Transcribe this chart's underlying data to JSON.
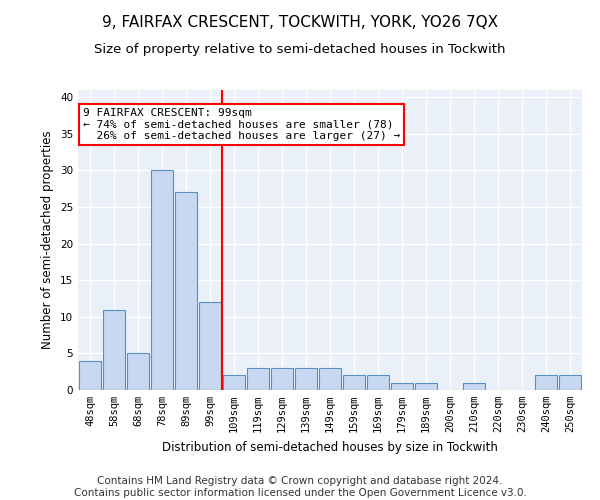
{
  "title": "9, FAIRFAX CRESCENT, TOCKWITH, YORK, YO26 7QX",
  "subtitle": "Size of property relative to semi-detached houses in Tockwith",
  "xlabel": "Distribution of semi-detached houses by size in Tockwith",
  "ylabel": "Number of semi-detached properties",
  "categories": [
    "48sqm",
    "58sqm",
    "68sqm",
    "78sqm",
    "89sqm",
    "99sqm",
    "109sqm",
    "119sqm",
    "129sqm",
    "139sqm",
    "149sqm",
    "159sqm",
    "169sqm",
    "179sqm",
    "189sqm",
    "200sqm",
    "210sqm",
    "220sqm",
    "230sqm",
    "240sqm",
    "250sqm"
  ],
  "values": [
    4,
    11,
    5,
    30,
    27,
    12,
    2,
    3,
    3,
    3,
    3,
    2,
    2,
    1,
    1,
    0,
    1,
    0,
    0,
    2,
    2
  ],
  "bar_color": "#c6d9f0",
  "bar_edgecolor": "#5a8fc2",
  "bar_linewidth": 0.8,
  "vline_x": 5.5,
  "vline_color": "red",
  "annotation_line1": "9 FAIRFAX CRESCENT: 99sqm",
  "annotation_line2": "← 74% of semi-detached houses are smaller (78)",
  "annotation_line3": "  26% of semi-detached houses are larger (27) →",
  "annotation_box_color": "white",
  "annotation_box_edgecolor": "red",
  "ylim": [
    0,
    41
  ],
  "yticks": [
    0,
    5,
    10,
    15,
    20,
    25,
    30,
    35,
    40
  ],
  "background_color": "#eaf0f8",
  "grid_color": "white",
  "title_fontsize": 11,
  "subtitle_fontsize": 9.5,
  "axis_label_fontsize": 8.5,
  "tick_fontsize": 7.5,
  "footer_text": "Contains HM Land Registry data © Crown copyright and database right 2024.\nContains public sector information licensed under the Open Government Licence v3.0.",
  "footer_fontsize": 7.5
}
